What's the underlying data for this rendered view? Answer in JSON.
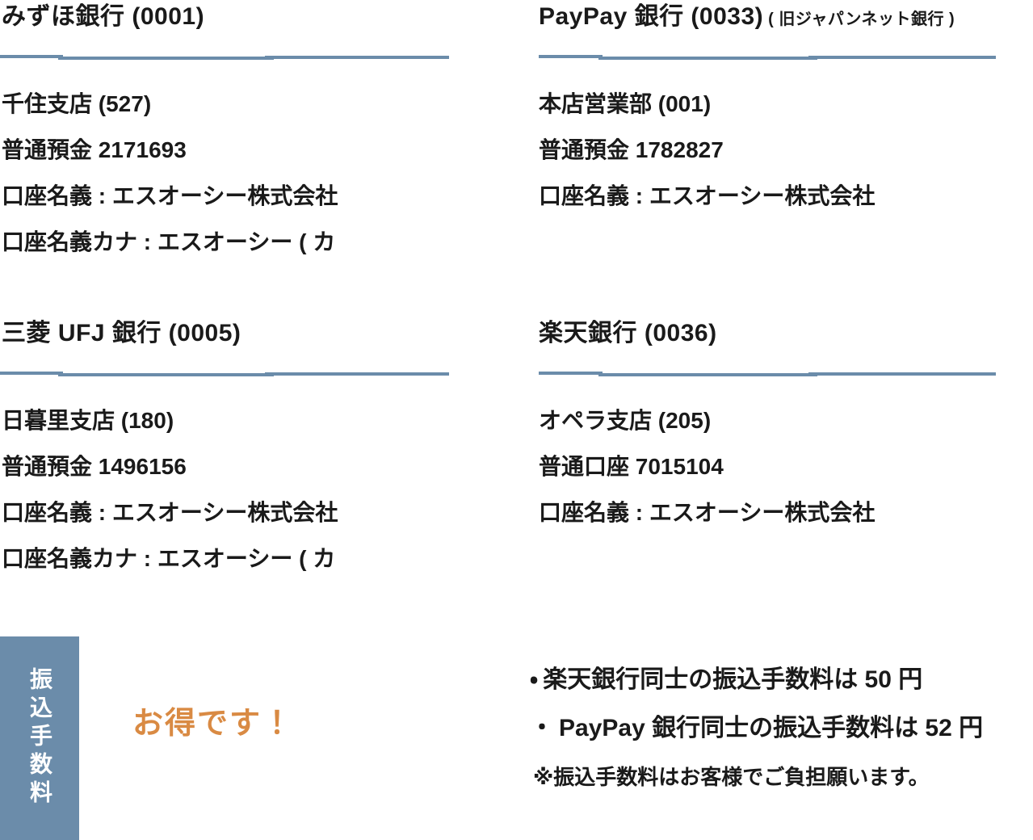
{
  "page": {
    "background": "#ffffff",
    "accent_blue": "#6b8caa",
    "accent_orange": "#d98a43",
    "text_color": "#1a1a1a"
  },
  "banks": [
    {
      "name": "みずほ銀行 (0001)",
      "lines": [
        "千住支店 (527)",
        "普通預金 2171693",
        "口座名義 : エスオーシー株式会社",
        "口座名義カナ : エスオーシー ( カ"
      ]
    },
    {
      "name": "PayPay 銀行 (0033)",
      "note": "( 旧ジャパンネット銀行 )",
      "lines": [
        "本店営業部 (001)",
        "普通預金 1782827",
        "口座名義 : エスオーシー株式会社"
      ]
    },
    {
      "name": "三菱 UFJ 銀行 (0005)",
      "lines": [
        "日暮里支店 (180)",
        "普通預金 1496156",
        "口座名義 : エスオーシー株式会社",
        "口座名義カナ : エスオーシー ( カ"
      ]
    },
    {
      "name": "楽天銀行 (0036)",
      "lines": [
        "オペラ支店 (205)",
        "普通口座 7015104",
        "口座名義 : エスオーシー株式会社"
      ]
    }
  ],
  "fees": {
    "section_label_vertical": "振込手数料",
    "highlight": "お得です！",
    "bullet_marker": "・",
    "bullets": [
      "楽天銀行同士の振込手数料は 50 円",
      "PayPay 銀行同士の振込手数料は 52 円"
    ],
    "note": "※振込手数料はお客様でご負担願います。"
  }
}
